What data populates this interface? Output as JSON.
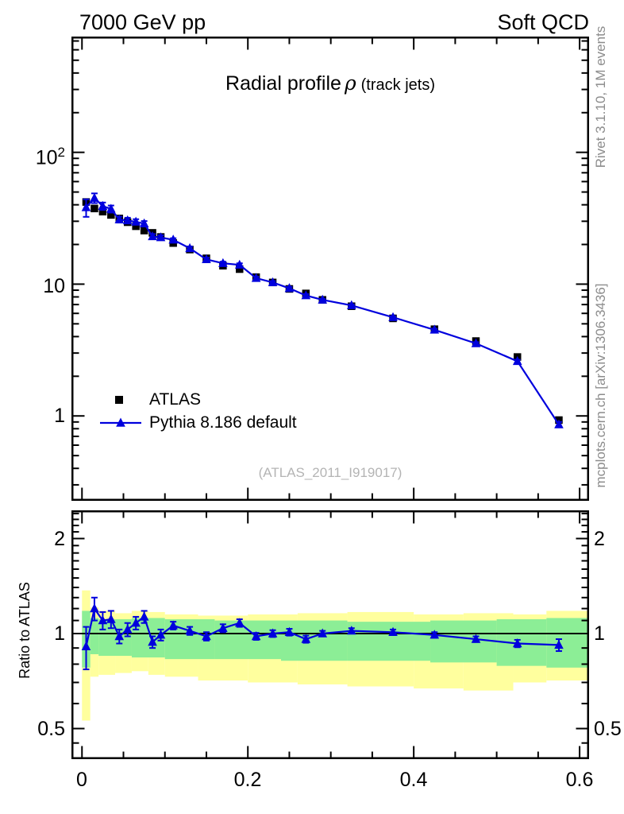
{
  "header": {
    "left": "7000 GeV pp",
    "right": "Soft QCD"
  },
  "title": {
    "main": "Radial profile",
    "symbol": "ρ",
    "suffix": "(track jets)"
  },
  "watermark": "(ATLAS_2011_I919017)",
  "side_text": {
    "rivet": "Rivet 3.1.10, 1M events",
    "mcplots": "mcplots.cern.ch [arXiv:1306.3436]"
  },
  "legend": {
    "atlas": "ATLAS",
    "pythia": "Pythia 8.186 default"
  },
  "axes": {
    "x_labels": [
      "0",
      "0.2",
      "0.4",
      "0.6"
    ],
    "main_y": {
      "hundred_base": "10",
      "hundred_exp": "2",
      "ten": "10",
      "one": "1"
    },
    "ratio_y_labels": [
      "2",
      "1",
      "0.5"
    ],
    "ratio_ylabel": "Ratio to ATLAS"
  },
  "colors": {
    "pythia_blue": "#0000dd",
    "atlas_black": "#000000",
    "band_yellow": "#ffff9e",
    "band_green": "#8cee96",
    "frame_black": "#000000",
    "gray_text": "#8c8c8c",
    "watermark_gray": "#b4b4b4"
  },
  "chart_data": [
    {
      "type": "line",
      "title": "Radial profile ρ (track jets)",
      "y_scale": "log",
      "xlim": [
        -0.0127,
        0.6114
      ],
      "ylim": [
        0.227,
        756
      ],
      "x_ticks": [
        0,
        0.2,
        0.4,
        0.6
      ],
      "x_minor_step": 0.05,
      "y_ticks": [
        1,
        10,
        100
      ],
      "x": [
        0.005,
        0.015,
        0.025,
        0.035,
        0.045,
        0.055,
        0.065,
        0.075,
        0.085,
        0.095,
        0.11,
        0.13,
        0.15,
        0.17,
        0.19,
        0.21,
        0.23,
        0.25,
        0.27,
        0.29,
        0.325,
        0.375,
        0.425,
        0.475,
        0.525,
        0.575
      ],
      "series": [
        {
          "name": "ATLAS",
          "marker": "square",
          "color": "#000000",
          "line": false,
          "values": [
            42,
            37.5,
            35.5,
            33.5,
            31.5,
            29.5,
            27.5,
            25.5,
            24.5,
            22.8,
            20.5,
            18.3,
            15.7,
            13.8,
            13.0,
            11.3,
            10.3,
            9.2,
            8.5,
            7.6,
            6.8,
            5.5,
            4.55,
            3.7,
            2.8,
            0.93
          ]
        },
        {
          "name": "Pythia 8.186 default",
          "marker": "triangle",
          "color": "#0000dd",
          "line": true,
          "values": [
            38.2,
            45.0,
            39.1,
            37.2,
            30.9,
            30.4,
            29.7,
            28.8,
            23.0,
            22.6,
            21.7,
            18.7,
            15.4,
            14.4,
            14.0,
            11.1,
            10.3,
            9.3,
            8.2,
            7.6,
            6.9,
            5.6,
            4.5,
            3.55,
            2.6,
            0.86
          ],
          "errors": [
            5.8,
            3.8,
            2.5,
            2.3,
            1.6,
            1.5,
            1.4,
            1.3,
            1.0,
            0.9,
            0.6,
            0.55,
            0.47,
            0.41,
            0.39,
            0.28,
            0.26,
            0.23,
            0.21,
            0.15,
            0.13,
            0.11,
            0.09,
            0.08,
            0.07,
            0.04
          ]
        }
      ]
    },
    {
      "type": "ratio",
      "ylabel": "Ratio to ATLAS",
      "y_scale": "log",
      "xlim": [
        -0.0127,
        0.6114
      ],
      "ylim": [
        0.4,
        2.457
      ],
      "y_ticks": [
        0.5,
        1,
        2
      ],
      "reference_line": 1,
      "x": [
        0.005,
        0.015,
        0.025,
        0.035,
        0.045,
        0.055,
        0.065,
        0.075,
        0.085,
        0.095,
        0.11,
        0.13,
        0.15,
        0.17,
        0.19,
        0.21,
        0.23,
        0.25,
        0.27,
        0.29,
        0.325,
        0.375,
        0.425,
        0.475,
        0.525,
        0.575
      ],
      "values": [
        0.91,
        1.2,
        1.1,
        1.11,
        0.98,
        1.03,
        1.08,
        1.13,
        0.94,
        0.99,
        1.06,
        1.02,
        0.98,
        1.04,
        1.08,
        0.98,
        1.0,
        1.01,
        0.96,
        1.0,
        1.02,
        1.01,
        0.99,
        0.96,
        0.93,
        0.92
      ],
      "errors": [
        0.14,
        0.1,
        0.07,
        0.07,
        0.05,
        0.05,
        0.05,
        0.05,
        0.04,
        0.04,
        0.03,
        0.03,
        0.03,
        0.03,
        0.03,
        0.025,
        0.025,
        0.025,
        0.025,
        0.02,
        0.02,
        0.02,
        0.02,
        0.02,
        0.025,
        0.04
      ],
      "bands": {
        "yellow": [
          [
            0.0,
            0.01,
            0.53,
            1.37
          ],
          [
            0.01,
            0.02,
            0.73,
            1.21
          ],
          [
            0.02,
            0.04,
            0.74,
            1.18
          ],
          [
            0.04,
            0.06,
            0.75,
            1.16
          ],
          [
            0.06,
            0.08,
            0.76,
            1.18
          ],
          [
            0.08,
            0.1,
            0.74,
            1.17
          ],
          [
            0.1,
            0.14,
            0.73,
            1.15
          ],
          [
            0.14,
            0.2,
            0.71,
            1.14
          ],
          [
            0.2,
            0.26,
            0.7,
            1.15
          ],
          [
            0.26,
            0.32,
            0.69,
            1.16
          ],
          [
            0.32,
            0.4,
            0.68,
            1.17
          ],
          [
            0.4,
            0.46,
            0.67,
            1.15
          ],
          [
            0.46,
            0.52,
            0.66,
            1.16
          ],
          [
            0.52,
            0.56,
            0.7,
            1.15
          ],
          [
            0.56,
            0.6114,
            0.71,
            1.18
          ]
        ],
        "green": [
          [
            0.0,
            0.01,
            0.78,
            1.18
          ],
          [
            0.01,
            0.02,
            0.86,
            1.12
          ],
          [
            0.02,
            0.06,
            0.85,
            1.11
          ],
          [
            0.06,
            0.1,
            0.84,
            1.12
          ],
          [
            0.1,
            0.16,
            0.83,
            1.11
          ],
          [
            0.16,
            0.24,
            0.83,
            1.1
          ],
          [
            0.24,
            0.32,
            0.82,
            1.1
          ],
          [
            0.32,
            0.42,
            0.82,
            1.09
          ],
          [
            0.42,
            0.5,
            0.81,
            1.1
          ],
          [
            0.5,
            0.56,
            0.79,
            1.11
          ],
          [
            0.56,
            0.6114,
            0.78,
            1.12
          ]
        ]
      }
    }
  ]
}
